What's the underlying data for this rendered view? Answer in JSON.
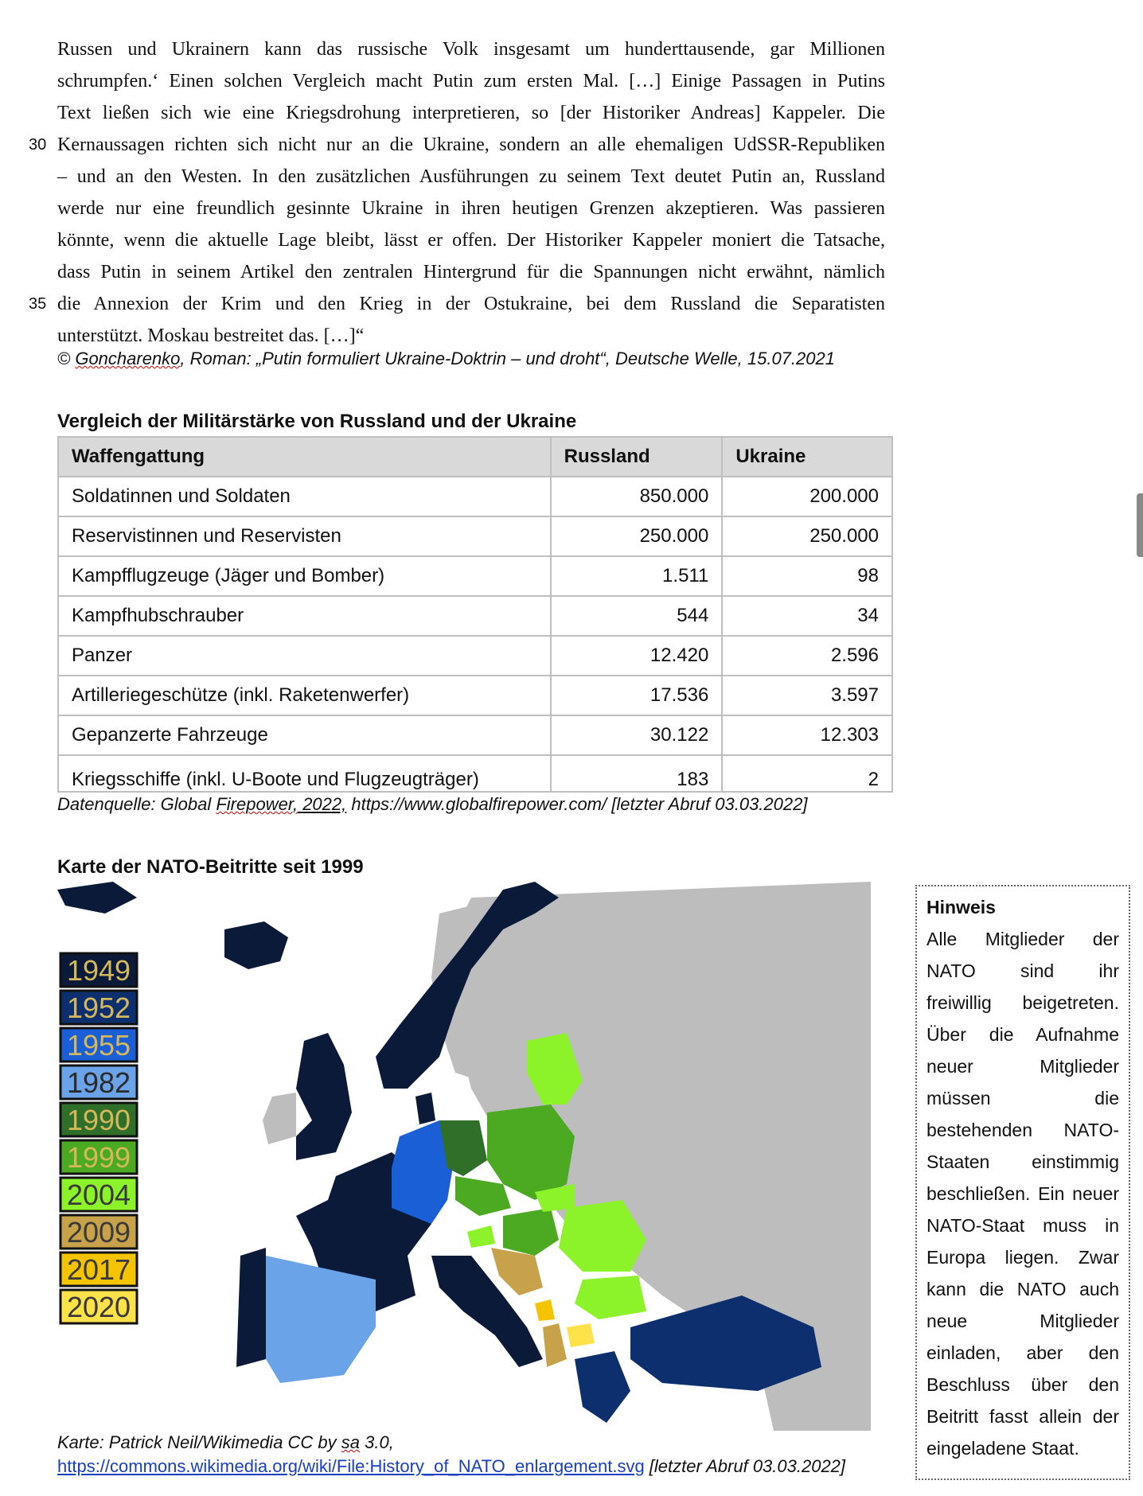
{
  "article": {
    "lines": [
      "Russen und Ukrainern kann das russische Volk insgesamt um hunderttausende, gar Millionen",
      "schrumpfen.‘ Einen solchen Vergleich macht Putin zum ersten Mal. […] Einige Passagen in Putins",
      "Text ließen sich wie eine Kriegsdrohung interpretieren, so [der Historiker Andreas] Kappeler. Die",
      "Kernaussagen richten sich nicht nur an die Ukraine, sondern an alle ehemaligen UdSSR-Republiken",
      "– und an den Westen. In den zusätzlichen Ausführungen zu seinem Text deutet Putin an, Russland",
      "werde nur eine freundlich gesinnte Ukraine in ihren heutigen Grenzen akzeptieren. Was passieren",
      "könnte, wenn die aktuelle Lage bleibt, lässt er offen. Der Historiker Kappeler moniert die Tatsache,",
      "dass Putin in seinem Artikel den zentralen Hintergrund für die Spannungen nicht erwähnt, nämlich",
      "die Annexion der Krim und den Krieg in der Ostukraine, bei dem Russland die Separatisten",
      "unterstützt. Moskau bestreitet das. […]“"
    ],
    "line_numbers": {
      "l4": "30",
      "l9": "35"
    },
    "source_prefix": "© ",
    "source_author": "Goncharenko",
    "source_rest": ", Roman: „Putin formuliert Ukraine-Doktrin – und droht“, Deutsche Welle, 15.07.2021"
  },
  "table": {
    "heading": "Vergleich der Militärstärke von Russland und der Ukraine",
    "columns": [
      "Waffengattung",
      "Russland",
      "Ukraine"
    ],
    "rows": [
      {
        "label": "Soldatinnen und Soldaten",
        "russland": "850.000",
        "ukraine": "200.000"
      },
      {
        "label": "Reservistinnen und Reservisten",
        "russland": "250.000",
        "ukraine": "250.000"
      },
      {
        "label": "Kampfflugzeuge (Jäger und Bomber)",
        "russland": "1.511",
        "ukraine": "98"
      },
      {
        "label": "Kampfhubschrauber",
        "russland": "544",
        "ukraine": "34"
      },
      {
        "label": "Panzer",
        "russland": "12.420",
        "ukraine": "2.596"
      },
      {
        "label": "Artilleriegeschütze (inkl. Raketenwerfer)",
        "russland": "17.536",
        "ukraine": "3.597"
      },
      {
        "label": "Gepanzerte Fahrzeuge",
        "russland": "30.122",
        "ukraine": "12.303"
      },
      {
        "label": "Kriegsschiffe (inkl. U-Boote und Flugzeugträger)",
        "russland": "183",
        "ukraine": "2"
      }
    ],
    "source_prefix": "Datenquelle: Global ",
    "source_firepower": "Firepower,",
    "source_year": " 2022,",
    "source_rest": " https://www.globalfirepower.com/ [letzter Abruf 03.03.2022]"
  },
  "map": {
    "heading": "Karte der NATO-Beitritte seit 1999",
    "legend": [
      {
        "year": "1949",
        "color": "#0c1a3a",
        "text_color": "#d4b85a"
      },
      {
        "year": "1952",
        "color": "#0e2f6e",
        "text_color": "#d4b85a"
      },
      {
        "year": "1955",
        "color": "#1a5fd6",
        "text_color": "#d4b85a"
      },
      {
        "year": "1982",
        "color": "#6aa3e8",
        "text_color": "#2a2a2a"
      },
      {
        "year": "1990",
        "color": "#2f6f2a",
        "text_color": "#d4b85a"
      },
      {
        "year": "1999",
        "color": "#4caa22",
        "text_color": "#d4b85a"
      },
      {
        "year": "2004",
        "color": "#8cf22a",
        "text_color": "#3a3a3a"
      },
      {
        "year": "2009",
        "color": "#c8a24a",
        "text_color": "#3a3a3a"
      },
      {
        "year": "2017",
        "color": "#f5c400",
        "text_color": "#3a3a3a"
      },
      {
        "year": "2020",
        "color": "#ffe14a",
        "text_color": "#3a3a3a"
      }
    ],
    "caption_prefix": "Karte: Patrick Neil/Wikimedia CC by ",
    "caption_sa": "sa",
    "caption_rest": " 3.0,",
    "link": "https://commons.wikimedia.org/wiki/File:History_of_NATO_enlargement.svg",
    "link_suffix": " [letzter Abruf 03.03.2022]"
  },
  "note": {
    "title": "Hinweis",
    "lines": [
      "Alle Mitglieder der",
      "NATO sind ihr",
      "freiwillig beigetreten.",
      "Über die Aufnahme",
      "neuer Mitglieder",
      "müssen die",
      "bestehenden NATO-",
      "Staaten einstimmig",
      "beschließen. Ein neuer",
      "NATO-Staat muss in",
      "Europa liegen. Zwar",
      "kann die NATO auch",
      "neue Mitglieder",
      "einladen, aber den",
      "Beschluss über den",
      "Beitritt fasst allein der",
      "eingeladene Staat."
    ]
  }
}
